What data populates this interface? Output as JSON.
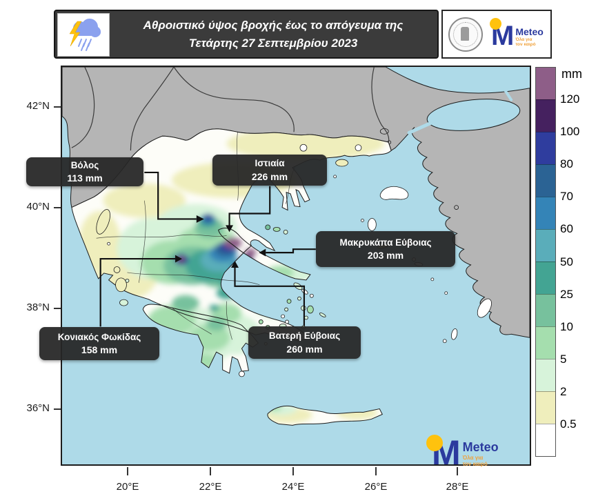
{
  "header": {
    "title_line1": "Αθροιστικό ύψος βροχής έως το απόγευμα της",
    "title_line2": "Τετάρτης 27 Σεπτεμβρίου 2023",
    "logo": {
      "meteo_name": "Meteo",
      "meteo_tagline_line1": "Όλα για",
      "meteo_tagline_line2": "τον καιρό"
    }
  },
  "map": {
    "annotations": [
      {
        "location": "Βόλος",
        "value": "113 mm"
      },
      {
        "location": "Ιστιαία",
        "value": "226 mm"
      },
      {
        "location": "Μακρυκάπα Εύβοιας",
        "value": "203 mm"
      },
      {
        "location": "Κονιακός Φωκίδας",
        "value": "158 mm"
      },
      {
        "location": "Βατερή Εύβοιας",
        "value": "260 mm"
      }
    ],
    "watermark": {
      "name": "Meteo",
      "tagline_line1": "Όλα για",
      "tagline_line2": "τον καιρό"
    }
  },
  "legend": {
    "unit": "mm",
    "labels": [
      "120",
      "100",
      "80",
      "70",
      "60",
      "50",
      "25",
      "10",
      "5",
      "2",
      "0.5"
    ],
    "colors": [
      "#8e5e88",
      "#45215f",
      "#2f3d9e",
      "#2b6394",
      "#3484b7",
      "#5aadba",
      "#43a493",
      "#77c19d",
      "#a5deae",
      "#d7f3da",
      "#efeebc",
      "#ffffff"
    ]
  },
  "axes": {
    "latitude": [
      "42°N",
      "40°N",
      "38°N",
      "36°N"
    ],
    "longitude": [
      "20°E",
      "22°E",
      "24°E",
      "26°E",
      "28°E"
    ]
  },
  "palette": {
    "sea": "#aedae8",
    "land_outside": "#b5b5b5",
    "header_bg": "#3b3b3b",
    "callout_bg": "#262626",
    "meteo_blue": "#2b3a9e",
    "meteo_yellow": "#ffc20e",
    "meteo_orange": "#f0a23c"
  }
}
